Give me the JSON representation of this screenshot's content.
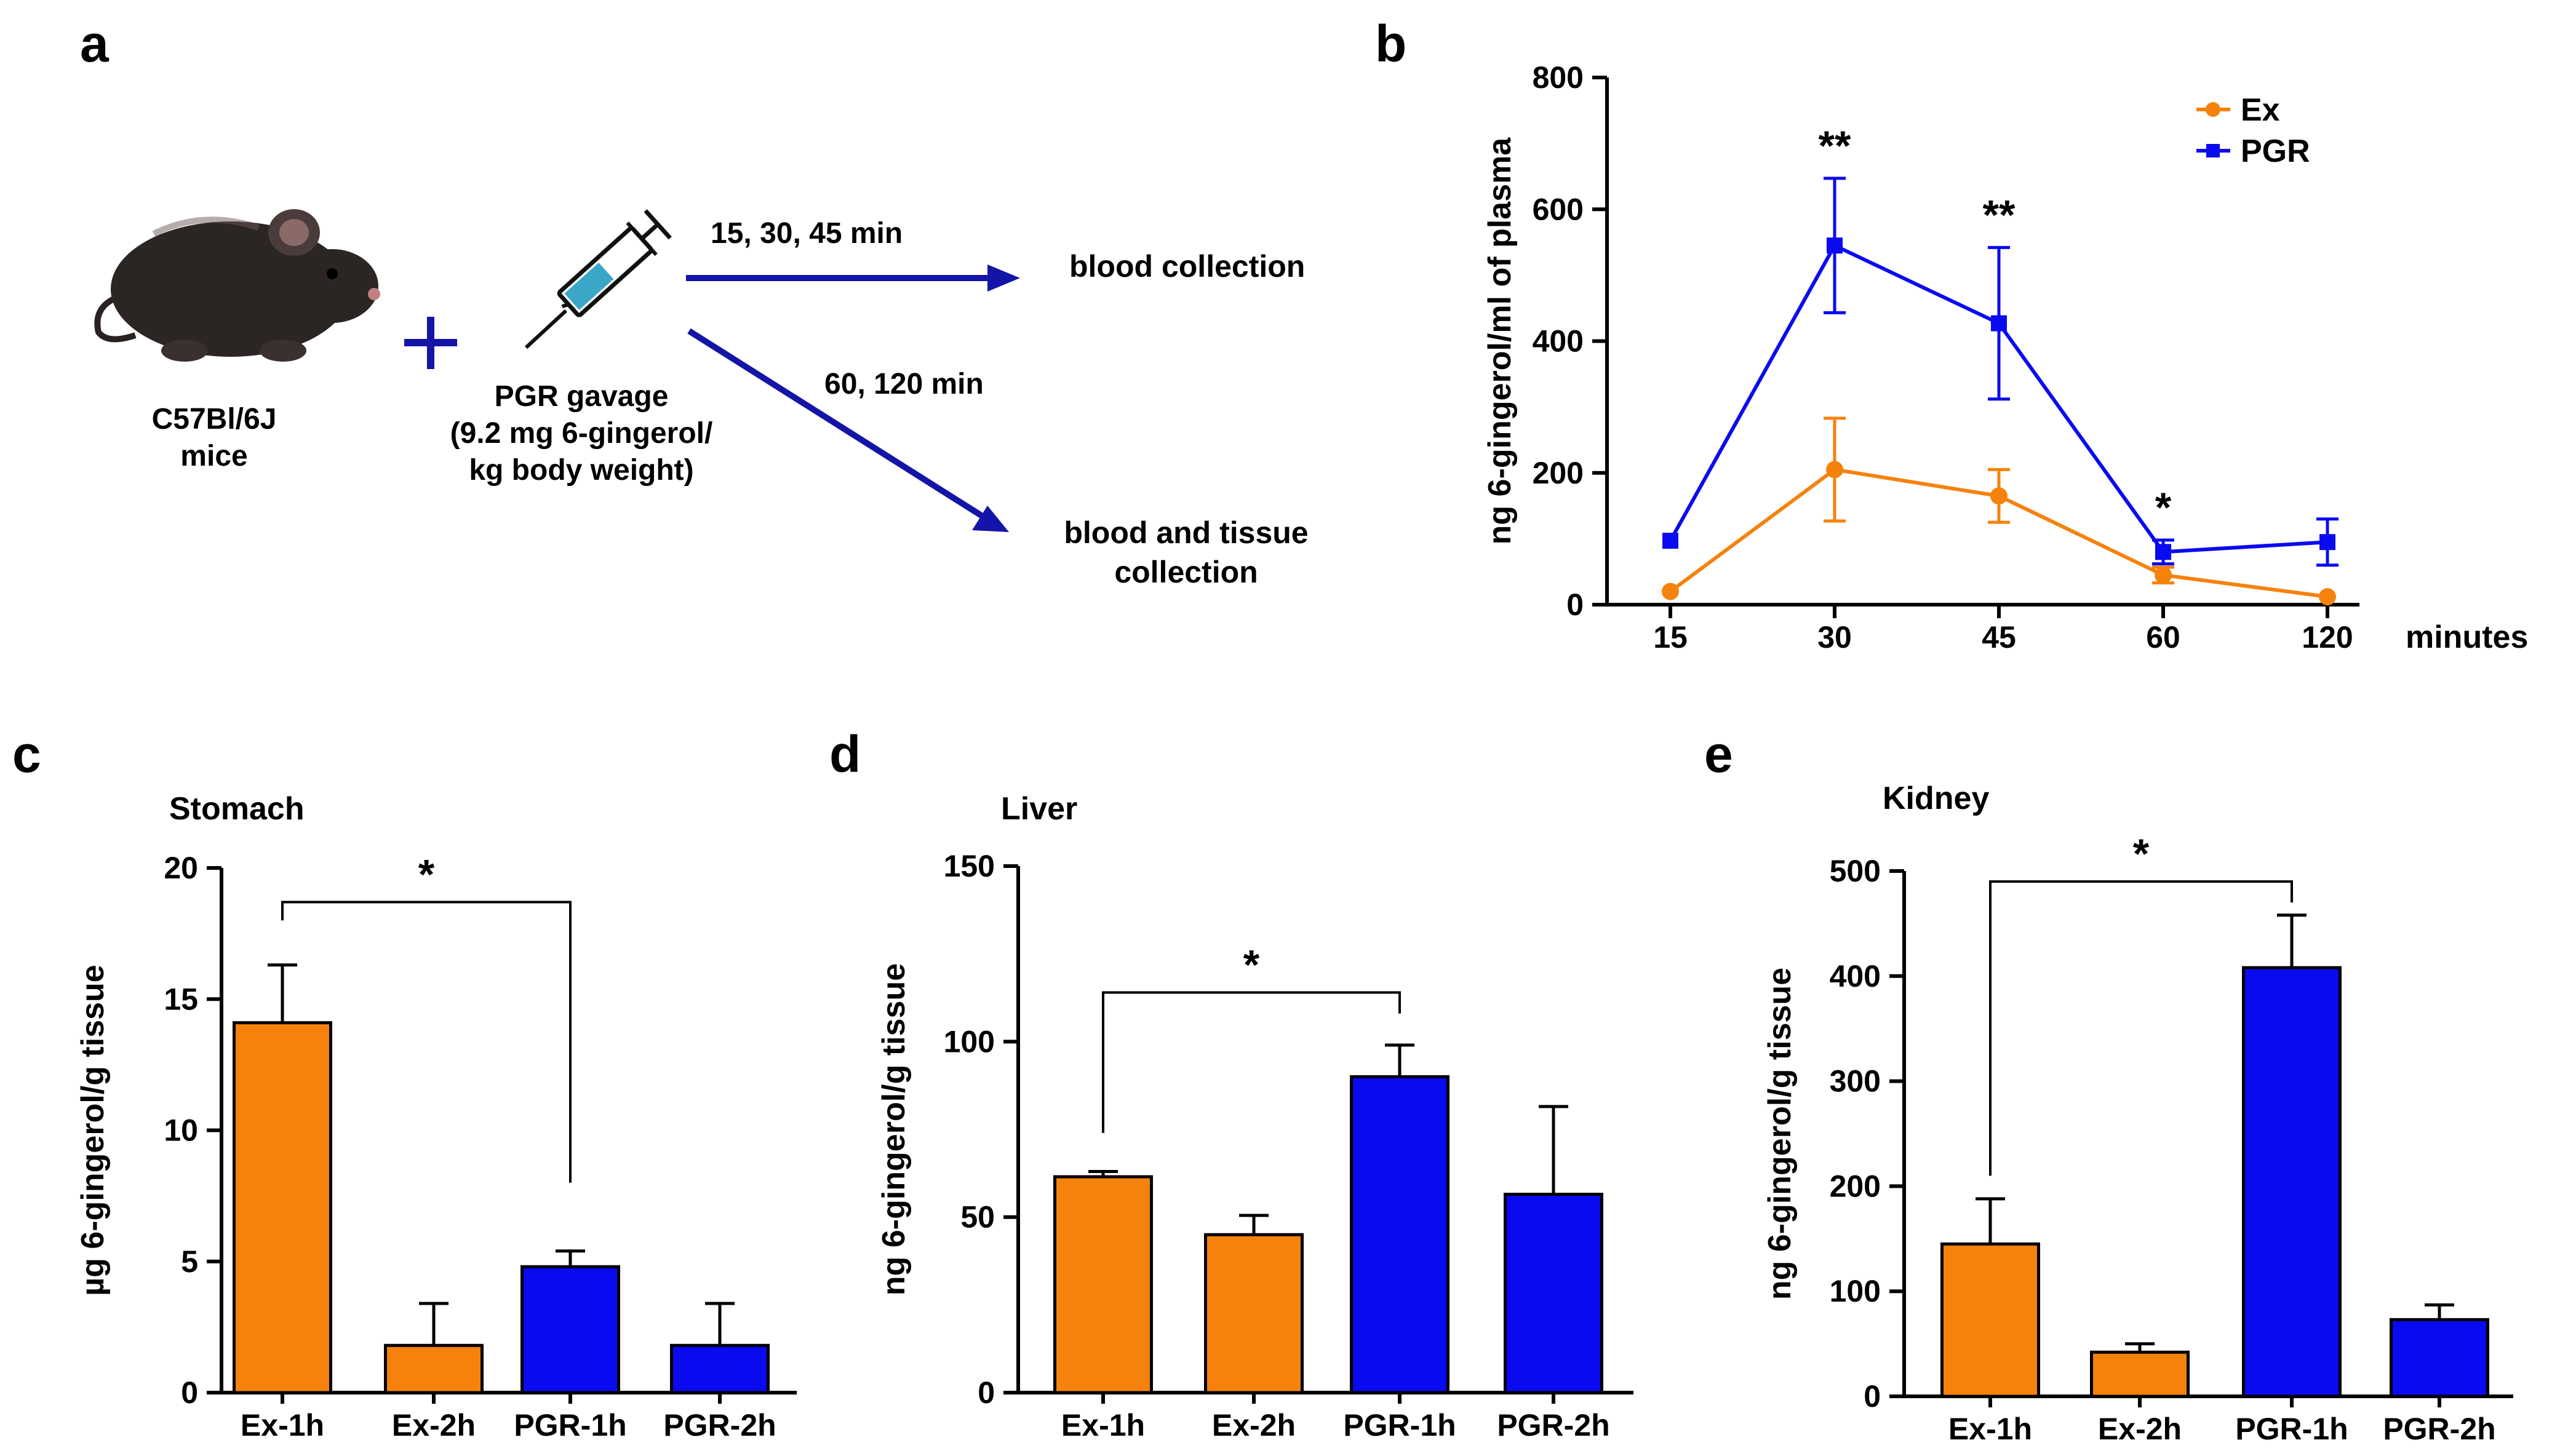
{
  "panel_letters": {
    "a": "a",
    "b": "b",
    "c": "c",
    "d": "d",
    "e": "e"
  },
  "colors": {
    "ex": "#F5820D",
    "pgr": "#0A0AF0",
    "arrow": "#1414A8",
    "axis": "#000000"
  },
  "schematic": {
    "mouse_label_1": "C57Bl/6J",
    "mouse_label_2": "mice",
    "plus": "+",
    "gavage_line_1": "PGR gavage",
    "gavage_line_2": "(9.2 mg 6-gingerol/",
    "gavage_line_3": "kg body weight)",
    "arrow1_label": "15, 30, 45 min",
    "arrow1_target": "blood collection",
    "arrow2_label": "60, 120 min",
    "arrow2_target_1": "blood and tissue",
    "arrow2_target_2": "collection",
    "icons": [
      "mouse-icon",
      "plus-icon",
      "syringe-icon"
    ]
  },
  "chart_data": [
    {
      "panel": "b",
      "type": "line",
      "title": "",
      "xlabel": "minutes",
      "ylabel": "ng 6-gingerol/ml of plasma",
      "categories": [
        "15",
        "30",
        "45",
        "60",
        "120"
      ],
      "ylim": [
        0,
        800
      ],
      "yticks": [
        0,
        200,
        400,
        600,
        800
      ],
      "series": [
        {
          "name": "Ex",
          "color": "#F5820D",
          "marker": "circle",
          "values": [
            20,
            205,
            165,
            45,
            12
          ],
          "errors": [
            0,
            78,
            40,
            12,
            0
          ]
        },
        {
          "name": "PGR",
          "color": "#0A0AF0",
          "marker": "square",
          "values": [
            97,
            545,
            427,
            80,
            95
          ],
          "errors": [
            0,
            102,
            115,
            18,
            35
          ]
        }
      ],
      "significance": [
        {
          "category": "30",
          "label": "**"
        },
        {
          "category": "45",
          "label": "**"
        },
        {
          "category": "60",
          "label": "*"
        }
      ],
      "legend": "top-right"
    },
    {
      "panel": "c",
      "type": "bar",
      "title": "Stomach",
      "ylabel": "µg 6-gingerol/g tissue",
      "categories": [
        "Ex-1h",
        "Ex-2h",
        "PGR-1h",
        "PGR-2h"
      ],
      "values": [
        14.1,
        1.8,
        4.8,
        1.8
      ],
      "errors": [
        2.2,
        1.6,
        0.6,
        1.6
      ],
      "ylim": [
        0,
        20
      ],
      "yticks": [
        0,
        5,
        10,
        15,
        20
      ],
      "bracket": {
        "from": "Ex-1h",
        "to": "PGR-1h",
        "label": "*",
        "y": 18.7,
        "left_end": 18.0,
        "right_end": 8.0
      }
    },
    {
      "panel": "d",
      "type": "bar",
      "title": "Liver",
      "ylabel": "ng 6-gingerol/g tissue",
      "categories": [
        "Ex-1h",
        "Ex-2h",
        "PGR-1h",
        "PGR-2h"
      ],
      "values": [
        61.5,
        45,
        90,
        56.5
      ],
      "errors": [
        1.5,
        5.5,
        9,
        25
      ],
      "ylim": [
        0,
        150
      ],
      "yticks": [
        0,
        50,
        100,
        150
      ],
      "bracket": {
        "from": "Ex-1h",
        "to": "PGR-1h",
        "label": "*",
        "y": 114,
        "left_end": 74,
        "right_end": 108
      }
    },
    {
      "panel": "e",
      "type": "bar",
      "title": "Kidney",
      "ylabel": "ng 6-gingerol/g tissue",
      "categories": [
        "Ex-1h",
        "Ex-2h",
        "PGR-1h",
        "PGR-2h"
      ],
      "values": [
        145,
        42,
        408,
        73
      ],
      "errors": [
        43,
        8,
        50,
        14
      ],
      "ylim": [
        0,
        500
      ],
      "yticks": [
        0,
        100,
        200,
        300,
        400,
        500
      ],
      "bracket": {
        "from": "Ex-1h",
        "to": "PGR-1h",
        "label": "*",
        "y": 490,
        "left_end": 210,
        "right_end": 470
      }
    }
  ]
}
